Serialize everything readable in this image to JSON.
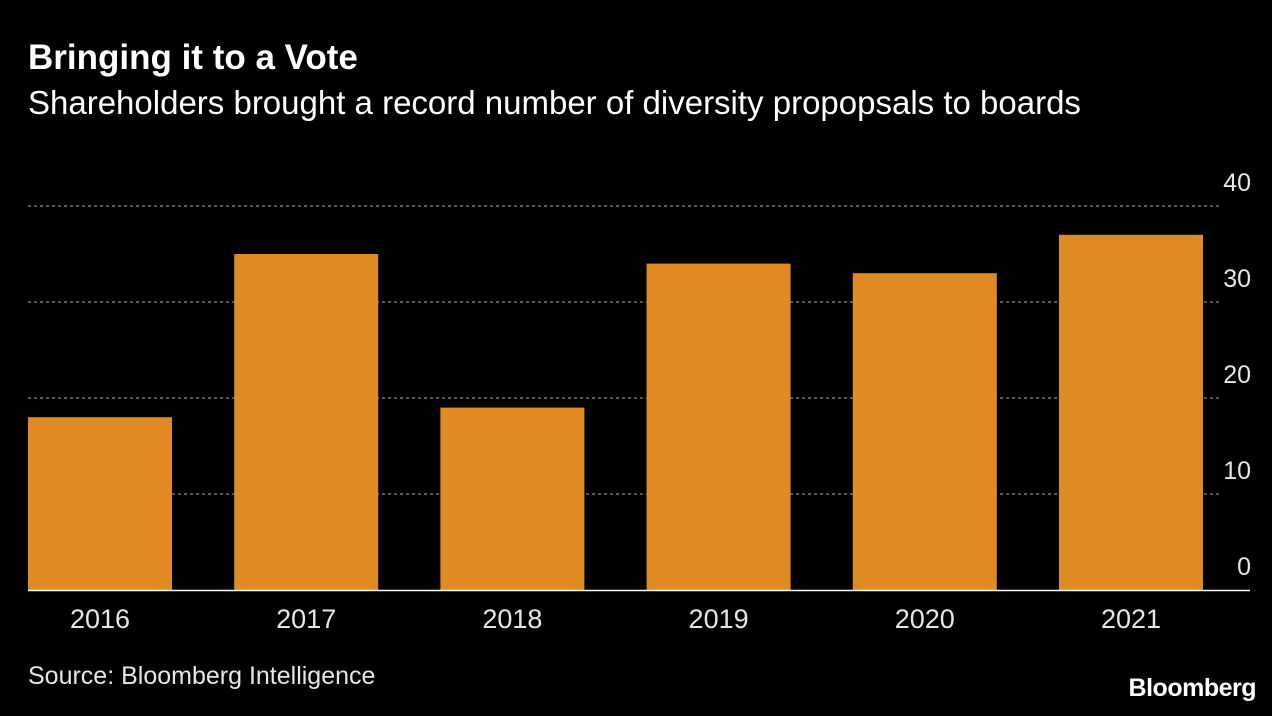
{
  "chart_data": {
    "type": "bar",
    "title": "Bringing it to a Vote",
    "subtitle": "Shareholders brought a record number of diversity propopsals to boards",
    "categories": [
      "2016",
      "2017",
      "2018",
      "2019",
      "2020",
      "2021"
    ],
    "values": [
      18,
      35,
      19,
      34,
      33,
      37
    ],
    "xlabel": "",
    "ylabel": "",
    "ylim": [
      0,
      40
    ],
    "yticks": [
      "0",
      "10",
      "20",
      "30",
      "40"
    ],
    "grid": true,
    "y_axis_side": "right",
    "source": "Source: Bloomberg Intelligence",
    "brand": "Bloomberg",
    "colors": {
      "background": "#000000",
      "bar": "#e08a23",
      "text": "#ffffff",
      "gridline": "#8a8a8a",
      "axis": "#ffffff"
    }
  }
}
